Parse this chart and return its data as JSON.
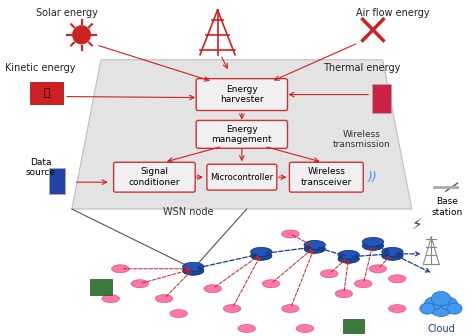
{
  "title": "",
  "bg_color": "#ffffff",
  "wsn_box_color": "#d3d3d3",
  "box_edge_color": "#cc3333",
  "box_fill": "#f0f0f0",
  "arrow_red": "#cc2222",
  "arrow_blue": "#1a3a8a",
  "node_blue": "#1a4a9a",
  "node_pink": "#ff80aa",
  "node_green": "#3a8a3a",
  "text_labels": {
    "solar": "Solar energy",
    "airflow": "Air flow energy",
    "kinetic": "Kinetic energy",
    "thermal": "Thermal energy",
    "energy_harvester": "Energy\nharvester",
    "energy_management": "Energy\nmanagement",
    "signal_conditioner": "Signal\nconditioner",
    "microcontroller": "Microcontroller",
    "wireless_transceiver": "Wireless\ntransceiver",
    "wsn_node": "WSN node",
    "data_source": "Data\nsource",
    "wireless_transmission": "Wireless\ntransmission",
    "base_station": "Base\nstation",
    "cloud": "Cloud"
  },
  "font_size_label": 7,
  "font_size_box": 6.5
}
